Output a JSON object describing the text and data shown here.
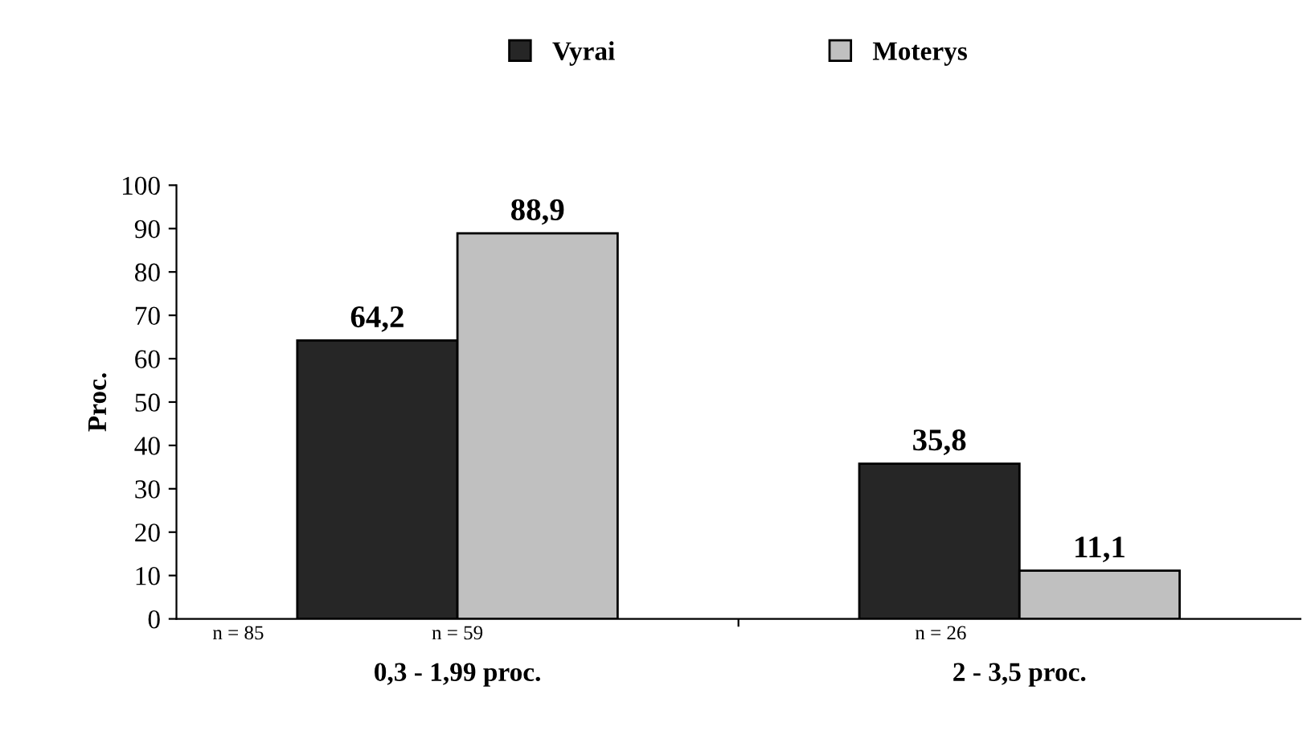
{
  "chart_data": {
    "type": "bar",
    "categories": [
      "0,3 - 1,99 proc.",
      "2 - 3,5 proc."
    ],
    "ylabel": "Proc.",
    "series": [
      {
        "name": "Vyrai",
        "color": "#262626",
        "values": [
          64.2,
          35.8
        ],
        "value_labels": [
          "64,2",
          "35,8"
        ]
      },
      {
        "name": "Moterys",
        "color": "#c0c0c0",
        "values": [
          88.9,
          11.1
        ],
        "value_labels": [
          "88,9",
          "11,1"
        ]
      }
    ],
    "ylim": [
      0,
      100
    ],
    "yticks": [
      0,
      10,
      20,
      30,
      40,
      50,
      60,
      70,
      80,
      90,
      100
    ],
    "grid": false,
    "legend": "top",
    "annotations": [
      "n = 85",
      "n = 59",
      "n = 26"
    ]
  }
}
